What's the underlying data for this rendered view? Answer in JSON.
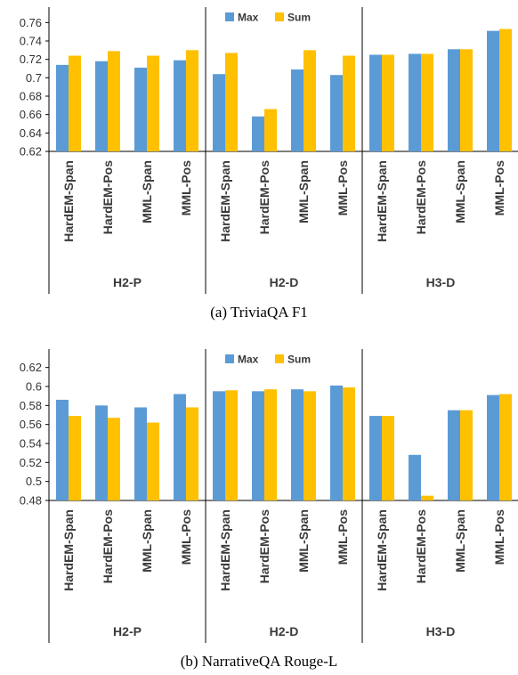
{
  "chart_data": [
    {
      "type": "bar",
      "title": "(a) TriviaQA F1",
      "ylim": [
        0.62,
        0.77
      ],
      "yticks": [
        "0.62",
        "0.64",
        "0.66",
        "0.68",
        "0.7",
        "0.72",
        "0.74",
        "0.76"
      ],
      "grid": false,
      "legend_position": "top-center",
      "groups": [
        {
          "name": "H2-P",
          "categories": [
            "HardEM-Span",
            "HardEM-Pos",
            "MML-Span",
            "MML-Pos"
          ],
          "series": [
            {
              "name": "Max",
              "values": [
                0.714,
                0.718,
                0.711,
                0.719
              ]
            },
            {
              "name": "Sum",
              "values": [
                0.724,
                0.729,
                0.724,
                0.73
              ]
            }
          ]
        },
        {
          "name": "H2-D",
          "categories": [
            "HardEM-Span",
            "HardEM-Pos",
            "MML-Span",
            "MML-Pos"
          ],
          "series": [
            {
              "name": "Max",
              "values": [
                0.704,
                0.658,
                0.709,
                0.703
              ]
            },
            {
              "name": "Sum",
              "values": [
                0.727,
                0.666,
                0.73,
                0.724
              ]
            }
          ]
        },
        {
          "name": "H3-D",
          "categories": [
            "HardEM-Span",
            "HardEM-Pos",
            "MML-Span",
            "MML-Pos"
          ],
          "series": [
            {
              "name": "Max",
              "values": [
                0.725,
                0.726,
                0.731,
                0.751
              ]
            },
            {
              "name": "Sum",
              "values": [
                0.725,
                0.726,
                0.731,
                0.753
              ]
            }
          ]
        }
      ]
    },
    {
      "type": "bar",
      "title": "(b) NarrativeQA Rouge-L",
      "ylim": [
        0.48,
        0.63
      ],
      "yticks": [
        "0.48",
        "0.5",
        "0.52",
        "0.54",
        "0.56",
        "0.58",
        "0.6",
        "0.62"
      ],
      "grid": false,
      "legend_position": "top-center",
      "groups": [
        {
          "name": "H2-P",
          "categories": [
            "HardEM-Span",
            "HardEM-Pos",
            "MML-Span",
            "MML-Pos"
          ],
          "series": [
            {
              "name": "Max",
              "values": [
                0.586,
                0.58,
                0.578,
                0.592
              ]
            },
            {
              "name": "Sum",
              "values": [
                0.569,
                0.567,
                0.562,
                0.578
              ]
            }
          ]
        },
        {
          "name": "H2-D",
          "categories": [
            "HardEM-Span",
            "HardEM-Pos",
            "MML-Span",
            "MML-Pos"
          ],
          "series": [
            {
              "name": "Max",
              "values": [
                0.595,
                0.595,
                0.597,
                0.601
              ]
            },
            {
              "name": "Sum",
              "values": [
                0.596,
                0.597,
                0.595,
                0.599
              ]
            }
          ]
        },
        {
          "name": "H3-D",
          "categories": [
            "HardEM-Span",
            "HardEM-Pos",
            "MML-Span",
            "MML-Pos"
          ],
          "series": [
            {
              "name": "Max",
              "values": [
                0.569,
                0.528,
                0.575,
                0.591
              ]
            },
            {
              "name": "Sum",
              "values": [
                0.569,
                0.485,
                0.575,
                0.592
              ]
            }
          ]
        }
      ]
    }
  ],
  "colors": {
    "Max": "#5b9bd5",
    "Sum": "#ffc000"
  }
}
